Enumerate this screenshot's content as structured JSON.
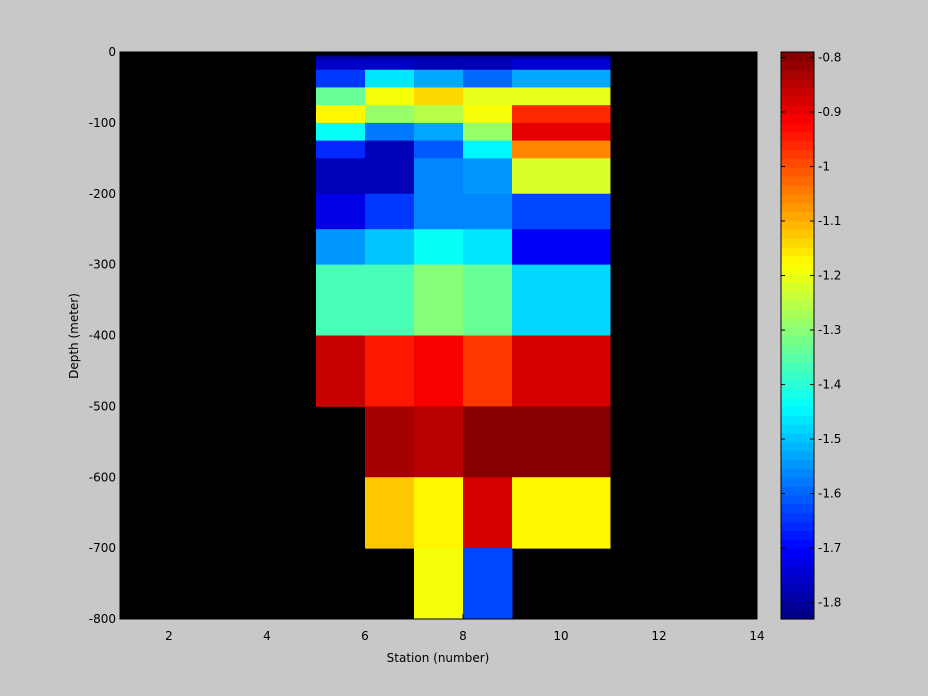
{
  "chart_data": {
    "type": "heatmap",
    "title": "",
    "xlabel": "Station (number)",
    "ylabel": "Depth (meter)",
    "xlim": [
      1,
      14
    ],
    "ylim": [
      -800,
      0
    ],
    "xticks": [
      "2",
      "4",
      "6",
      "8",
      "10",
      "12",
      "14"
    ],
    "yticks": [
      "0",
      "-100",
      "-200",
      "-300",
      "-400",
      "-500",
      "-600",
      "-700",
      "-800"
    ],
    "colorbar": {
      "colormap": "jet",
      "clim": [
        -1.83,
        -0.79
      ],
      "ticks": [
        "-0.8",
        "-0.9",
        "-1",
        "-1.1",
        "-1.2",
        "-1.3",
        "-1.4",
        "-1.5",
        "-1.6",
        "-1.7",
        "-1.8"
      ]
    },
    "missing_color": "#000000",
    "x_edges": [
      5,
      7,
      8,
      9,
      11
    ],
    "x_edges_alt": [
      5,
      6,
      7,
      8,
      9,
      11
    ],
    "rows": [
      {
        "depth": [
          -5,
          -10
        ],
        "cols": [
          [
            5,
            11
          ]
        ],
        "values": [
          -1.81
        ]
      },
      {
        "depth": [
          -10,
          -25
        ],
        "cols": [
          [
            5,
            7
          ],
          [
            7,
            9
          ],
          [
            9,
            11
          ]
        ],
        "values": [
          -1.76,
          -1.78,
          -1.74
        ]
      },
      {
        "depth": [
          -25,
          -50
        ],
        "cols": [
          [
            5,
            6
          ],
          [
            6,
            7
          ],
          [
            7,
            8
          ],
          [
            8,
            9
          ],
          [
            9,
            11
          ]
        ],
        "values": [
          -1.64,
          -1.47,
          -1.53,
          -1.59,
          -1.53
        ]
      },
      {
        "depth": [
          -50,
          -75
        ],
        "cols": [
          [
            5,
            6
          ],
          [
            6,
            7
          ],
          [
            7,
            8
          ],
          [
            8,
            9
          ],
          [
            9,
            11
          ]
        ],
        "values": [
          -1.33,
          -1.19,
          -1.14,
          -1.2,
          -1.21
        ]
      },
      {
        "depth": [
          -75,
          -100
        ],
        "cols": [
          [
            5,
            6
          ],
          [
            6,
            7
          ],
          [
            7,
            8
          ],
          [
            8,
            9
          ],
          [
            9,
            11
          ]
        ],
        "values": [
          -1.17,
          -1.28,
          -1.26,
          -1.19,
          -0.96
        ]
      },
      {
        "depth": [
          -100,
          -125
        ],
        "cols": [
          [
            5,
            6
          ],
          [
            6,
            7
          ],
          [
            7,
            8
          ],
          [
            8,
            9
          ],
          [
            9,
            11
          ]
        ],
        "values": [
          -1.44,
          -1.58,
          -1.53,
          -1.29,
          -0.9
        ]
      },
      {
        "depth": [
          -125,
          -150
        ],
        "cols": [
          [
            5,
            6
          ],
          [
            6,
            7
          ],
          [
            7,
            8
          ],
          [
            8,
            9
          ],
          [
            9,
            11
          ]
        ],
        "values": [
          -1.66,
          -1.77,
          -1.61,
          -1.45,
          -1.06
        ]
      },
      {
        "depth": [
          -150,
          -200
        ],
        "cols": [
          [
            5,
            7
          ],
          [
            7,
            8
          ],
          [
            8,
            9
          ],
          [
            9,
            11
          ]
        ],
        "values": [
          -1.77,
          -1.57,
          -1.55,
          -1.22
        ]
      },
      {
        "depth": [
          -200,
          -250
        ],
        "cols": [
          [
            5,
            6
          ],
          [
            6,
            7
          ],
          [
            7,
            9
          ],
          [
            9,
            11
          ]
        ],
        "values": [
          -1.72,
          -1.65,
          -1.57,
          -1.63
        ]
      },
      {
        "depth": [
          -250,
          -300
        ],
        "cols": [
          [
            5,
            6
          ],
          [
            6,
            7
          ],
          [
            7,
            8
          ],
          [
            8,
            9
          ],
          [
            9,
            11
          ]
        ],
        "values": [
          -1.54,
          -1.49,
          -1.44,
          -1.46,
          -1.71
        ]
      },
      {
        "depth": [
          -300,
          -400
        ],
        "cols": [
          [
            5,
            7
          ],
          [
            7,
            8
          ],
          [
            8,
            9
          ],
          [
            9,
            11
          ]
        ],
        "values": [
          -1.36,
          -1.3,
          -1.34,
          -1.48
        ]
      },
      {
        "depth": [
          -400,
          -500
        ],
        "cols": [
          [
            5,
            6
          ],
          [
            6,
            7
          ],
          [
            7,
            8
          ],
          [
            8,
            9
          ],
          [
            9,
            11
          ]
        ],
        "values": [
          -0.87,
          -0.95,
          -0.91,
          -0.97,
          -0.88
        ]
      },
      {
        "depth": [
          -500,
          -600
        ],
        "cols": [
          [
            6,
            7
          ],
          [
            7,
            8
          ],
          [
            8,
            11
          ]
        ],
        "values": [
          -0.83,
          -0.85,
          -0.8
        ]
      },
      {
        "depth": [
          -600,
          -700
        ],
        "cols": [
          [
            6,
            7
          ],
          [
            7,
            8
          ],
          [
            8,
            9
          ],
          [
            9,
            11
          ]
        ],
        "values": [
          -1.12,
          -1.17,
          -0.88,
          -1.17
        ]
      },
      {
        "depth": [
          -700,
          -800
        ],
        "cols": [
          [
            7,
            8
          ],
          [
            8,
            9
          ]
        ],
        "values": [
          -1.19,
          -1.62
        ]
      }
    ]
  }
}
